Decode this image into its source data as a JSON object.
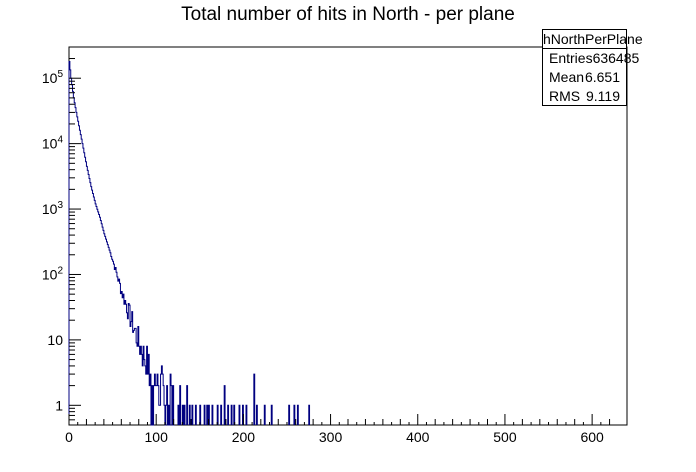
{
  "chart_data": {
    "type": "histogram",
    "title": "Total number of hits in North - per plane",
    "xlabel": "",
    "ylabel": "",
    "xlim": [
      0,
      640
    ],
    "ylim": [
      0.5,
      300000
    ],
    "yscale": "log",
    "x_ticks": [
      "0",
      "100",
      "200",
      "300",
      "400",
      "500",
      "600"
    ],
    "y_ticks": [
      "1",
      "10",
      "10^2",
      "10^3",
      "10^4",
      "10^5"
    ],
    "line_color": "#000080",
    "grid": false,
    "bin_width": 1,
    "stats": {
      "name": "hNorthPerPlane",
      "entries_label": "Entries",
      "entries": "636485",
      "mean_label": "Mean",
      "mean": "6.651",
      "rms_label": "RMS",
      "rms": "9.119"
    },
    "decay_curve": [
      [
        0,
        180000
      ],
      [
        2,
        100000
      ],
      [
        5,
        50000
      ],
      [
        8,
        30000
      ],
      [
        10,
        22000
      ],
      [
        15,
        10000
      ],
      [
        20,
        4500
      ],
      [
        25,
        2200
      ],
      [
        30,
        1200
      ],
      [
        35,
        750
      ],
      [
        40,
        420
      ],
      [
        45,
        260
      ],
      [
        50,
        160
      ],
      [
        55,
        95
      ],
      [
        60,
        55
      ],
      [
        65,
        35
      ],
      [
        70,
        22
      ],
      [
        75,
        14
      ],
      [
        80,
        9
      ],
      [
        85,
        6
      ],
      [
        90,
        4
      ],
      [
        95,
        3
      ],
      [
        100,
        2
      ],
      [
        110,
        1.5
      ],
      [
        120,
        1
      ]
    ],
    "sparse_bins": [
      [
        125,
        1
      ],
      [
        127,
        2
      ],
      [
        130,
        1
      ],
      [
        132,
        1
      ],
      [
        135,
        2
      ],
      [
        138,
        1
      ],
      [
        141,
        1
      ],
      [
        145,
        1
      ],
      [
        150,
        1
      ],
      [
        155,
        1
      ],
      [
        158,
        1
      ],
      [
        160,
        1
      ],
      [
        164,
        1
      ],
      [
        170,
        1
      ],
      [
        174,
        1
      ],
      [
        178,
        2
      ],
      [
        182,
        1
      ],
      [
        186,
        1
      ],
      [
        189,
        1
      ],
      [
        195,
        1
      ],
      [
        199,
        1
      ],
      [
        203,
        1
      ],
      [
        212,
        3
      ],
      [
        215,
        1
      ],
      [
        224,
        1
      ],
      [
        232,
        1
      ],
      [
        252,
        1
      ],
      [
        258,
        1
      ],
      [
        262,
        1
      ],
      [
        275,
        1
      ]
    ]
  }
}
